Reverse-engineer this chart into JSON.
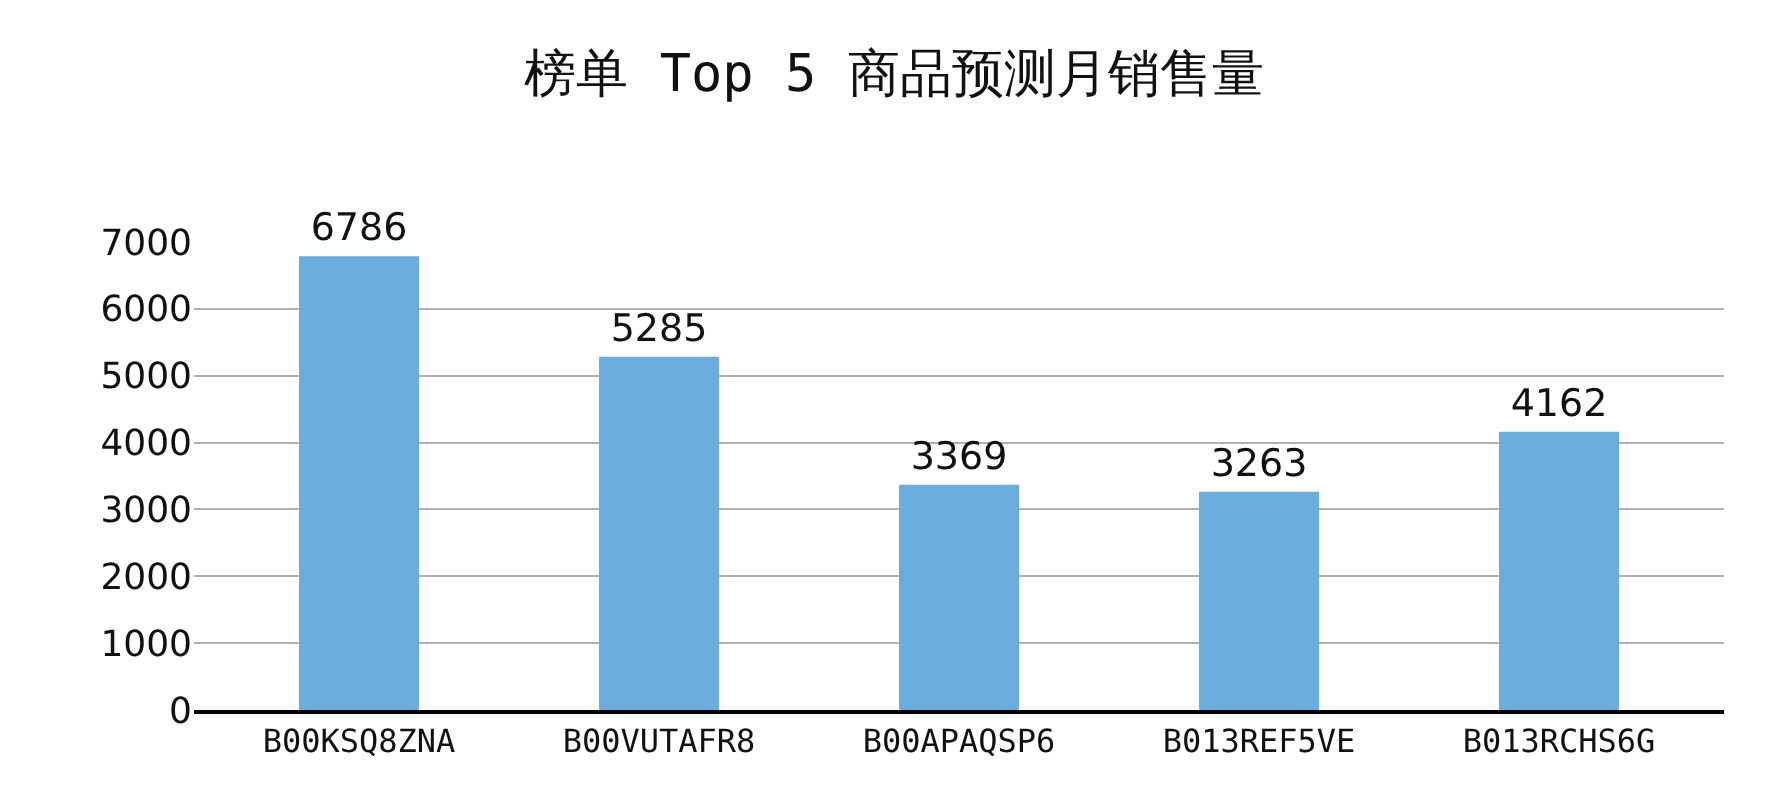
{
  "chart_data": {
    "type": "bar",
    "title": "榜单 Top 5 商品预测月销售量",
    "categories": [
      "B00KSQ8ZNA",
      "B00VUTAFR8",
      "B00APAQSP6",
      "B013REF5VE",
      "B013RCHS6G"
    ],
    "values": [
      6786,
      5285,
      3369,
      3263,
      4162
    ],
    "color": "#6aacdd",
    "ylim": [
      0,
      7000
    ],
    "yticks": [
      0,
      1000,
      2000,
      3000,
      4000,
      5000,
      6000,
      7000
    ],
    "grid": "y",
    "data_labels": true,
    "legend": false
  }
}
